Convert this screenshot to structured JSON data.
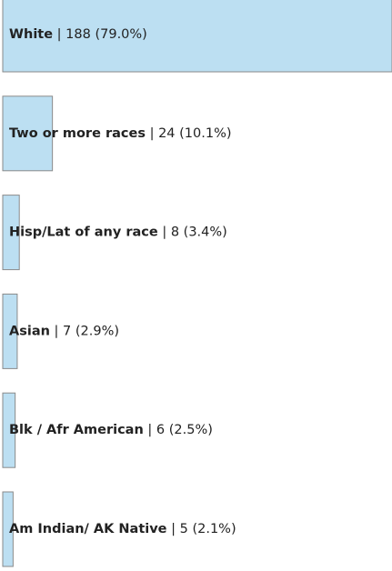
{
  "chart_data": {
    "type": "bar",
    "orientation": "horizontal",
    "categories": [
      "White",
      "Two or more races",
      "Hisp/Lat of any race",
      "Asian",
      "Blk / Afr American",
      "Am Indian/ AK Native"
    ],
    "values": [
      188,
      24,
      8,
      7,
      6,
      5
    ],
    "value_labels": [
      "188 (79.0%)",
      "24 (10.1%)",
      "8 (3.4%)",
      "7 (2.9%)",
      "6 (2.5%)",
      "5 (2.1%)"
    ],
    "separator": "|",
    "color": "#bcdff2"
  }
}
